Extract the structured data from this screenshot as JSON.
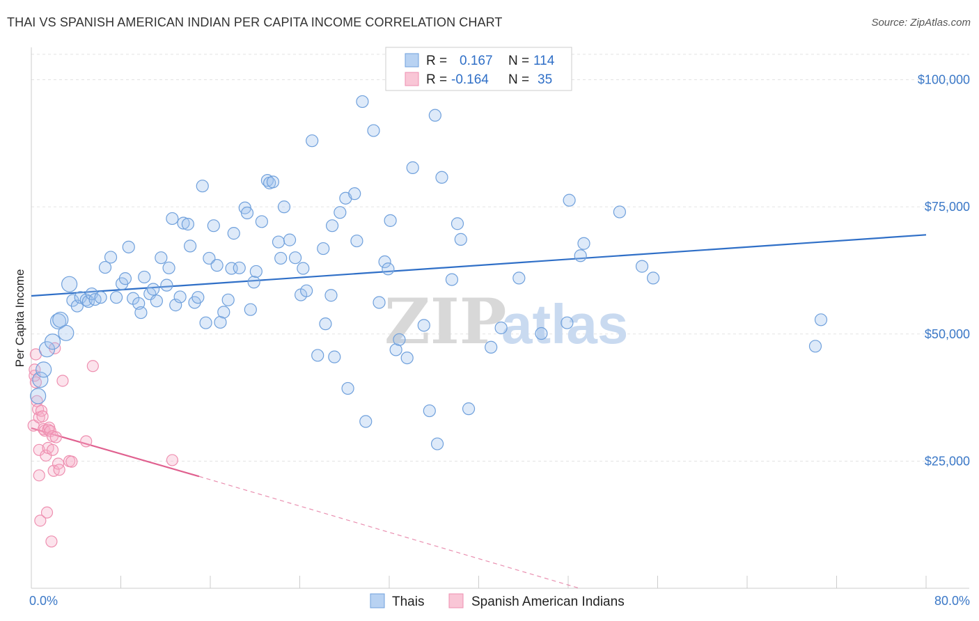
{
  "title": "THAI VS SPANISH AMERICAN INDIAN PER CAPITA INCOME CORRELATION CHART",
  "source": "Source: ZipAtlas.com",
  "watermark": {
    "zip": "ZIP",
    "atlas": "atlas"
  },
  "colors": {
    "thais": "#6fa0dc",
    "thais_line": "#2f6fc7",
    "spanish": "#ee8fb0",
    "spanish_line": "#e0608f",
    "tick": "#3b78c7"
  },
  "legend": {
    "rows": [
      {
        "r_label": "R =",
        "r_value": "0.167",
        "n_label": "N =",
        "n_value": "114"
      },
      {
        "r_label": "R =",
        "r_value": "-0.164",
        "n_label": "N =",
        "n_value": "35"
      }
    ]
  },
  "bottom_legend": [
    "Thais",
    "Spanish American Indians"
  ],
  "chart_data": {
    "type": "scatter",
    "title": "THAI VS SPANISH AMERICAN INDIAN PER CAPITA INCOME CORRELATION CHART",
    "ylabel": "Per Capita Income",
    "xlabel": "",
    "xlim": [
      0,
      80
    ],
    "ylim": [
      0,
      105000
    ],
    "x_tick_labels": [
      "0.0%",
      "80.0%"
    ],
    "y_ticks": [
      {
        "value": 25000,
        "label": "$25,000"
      },
      {
        "value": 50000,
        "label": "$50,000"
      },
      {
        "value": 75000,
        "label": "$75,000"
      },
      {
        "value": 100000,
        "label": "$100,000"
      }
    ],
    "grid": true,
    "legend_position": "top-center",
    "series": [
      {
        "name": "Thais",
        "r": 0.167,
        "n": 114,
        "trend": {
          "x": [
            0,
            80
          ],
          "y": [
            57500,
            69500
          ]
        },
        "points": [
          [
            0.6,
            37800
          ],
          [
            0.8,
            41000
          ],
          [
            1.1,
            43000
          ],
          [
            1.4,
            47000
          ],
          [
            1.9,
            48500
          ],
          [
            2.4,
            52500
          ],
          [
            2.6,
            52800
          ],
          [
            3.1,
            50200
          ],
          [
            3.4,
            59800
          ],
          [
            3.7,
            56600
          ],
          [
            4.1,
            55500
          ],
          [
            4.4,
            57200
          ],
          [
            4.9,
            56700
          ],
          [
            5.1,
            56400
          ],
          [
            5.4,
            57900
          ],
          [
            5.7,
            56800
          ],
          [
            6.2,
            57200
          ],
          [
            6.6,
            63100
          ],
          [
            7.1,
            65100
          ],
          [
            7.6,
            57200
          ],
          [
            8.1,
            59900
          ],
          [
            8.4,
            60900
          ],
          [
            8.7,
            67100
          ],
          [
            9.1,
            57000
          ],
          [
            9.6,
            56000
          ],
          [
            9.8,
            54200
          ],
          [
            10.1,
            61200
          ],
          [
            10.6,
            57900
          ],
          [
            10.9,
            58800
          ],
          [
            11.2,
            56500
          ],
          [
            11.6,
            65000
          ],
          [
            12.1,
            59600
          ],
          [
            12.3,
            63000
          ],
          [
            12.6,
            72700
          ],
          [
            12.9,
            55700
          ],
          [
            13.3,
            57300
          ],
          [
            13.6,
            71800
          ],
          [
            14.0,
            71600
          ],
          [
            14.2,
            67300
          ],
          [
            14.6,
            56200
          ],
          [
            14.9,
            57200
          ],
          [
            15.3,
            79100
          ],
          [
            15.6,
            52200
          ],
          [
            15.9,
            64900
          ],
          [
            16.3,
            71300
          ],
          [
            16.6,
            63500
          ],
          [
            16.9,
            52300
          ],
          [
            17.2,
            54300
          ],
          [
            17.6,
            56700
          ],
          [
            17.9,
            62900
          ],
          [
            18.1,
            69800
          ],
          [
            18.6,
            63000
          ],
          [
            19.1,
            74800
          ],
          [
            19.3,
            73800
          ],
          [
            19.6,
            54800
          ],
          [
            19.9,
            60200
          ],
          [
            20.1,
            62300
          ],
          [
            20.6,
            72100
          ],
          [
            21.1,
            80200
          ],
          [
            21.3,
            79700
          ],
          [
            21.6,
            79900
          ],
          [
            22.1,
            68100
          ],
          [
            22.3,
            64900
          ],
          [
            22.6,
            75000
          ],
          [
            23.1,
            68500
          ],
          [
            23.6,
            65000
          ],
          [
            24.1,
            57700
          ],
          [
            24.3,
            62900
          ],
          [
            24.6,
            58500
          ],
          [
            25.1,
            88000
          ],
          [
            25.6,
            45800
          ],
          [
            26.1,
            66800
          ],
          [
            26.3,
            52000
          ],
          [
            26.9,
            71300
          ],
          [
            27.1,
            45500
          ],
          [
            27.6,
            73900
          ],
          [
            28.1,
            76700
          ],
          [
            28.3,
            39300
          ],
          [
            28.9,
            77600
          ],
          [
            29.1,
            68300
          ],
          [
            29.6,
            95700
          ],
          [
            29.9,
            32800
          ],
          [
            30.6,
            90000
          ],
          [
            31.1,
            56200
          ],
          [
            31.6,
            64200
          ],
          [
            31.9,
            62800
          ],
          [
            32.1,
            72300
          ],
          [
            32.6,
            46900
          ],
          [
            32.9,
            48900
          ],
          [
            33.6,
            45300
          ],
          [
            34.1,
            82700
          ],
          [
            35.1,
            51700
          ],
          [
            35.6,
            34900
          ],
          [
            36.1,
            93000
          ],
          [
            36.3,
            28400
          ],
          [
            36.7,
            80800
          ],
          [
            37.6,
            60700
          ],
          [
            38.1,
            71700
          ],
          [
            38.4,
            68600
          ],
          [
            39.1,
            35300
          ],
          [
            41.1,
            47400
          ],
          [
            43.6,
            61000
          ],
          [
            45.6,
            50100
          ],
          [
            47.9,
            52200
          ],
          [
            48.1,
            76300
          ],
          [
            49.1,
            65400
          ],
          [
            49.4,
            67800
          ],
          [
            52.6,
            74000
          ],
          [
            54.6,
            63300
          ],
          [
            55.6,
            61000
          ],
          [
            70.6,
            52800
          ],
          [
            70.1,
            47600
          ],
          [
            42.0,
            51200
          ],
          [
            26.8,
            57600
          ]
        ]
      },
      {
        "name": "Spanish American Indians",
        "r": -0.164,
        "n": 35,
        "trend": {
          "x": [
            0,
            15
          ],
          "y": [
            31500,
            22000
          ]
        },
        "trend_dashed": {
          "x": [
            15,
            49
          ],
          "y": [
            22000,
            0
          ]
        },
        "points": [
          [
            0.2,
            32000
          ],
          [
            0.3,
            41800
          ],
          [
            0.3,
            43000
          ],
          [
            0.4,
            46000
          ],
          [
            0.5,
            36800
          ],
          [
            0.6,
            35200
          ],
          [
            0.7,
            33600
          ],
          [
            0.7,
            27200
          ],
          [
            0.7,
            22200
          ],
          [
            0.8,
            13300
          ],
          [
            0.9,
            34900
          ],
          [
            1.0,
            33800
          ],
          [
            1.1,
            31300
          ],
          [
            1.2,
            31000
          ],
          [
            1.3,
            26100
          ],
          [
            1.4,
            14900
          ],
          [
            1.5,
            27600
          ],
          [
            1.5,
            31200
          ],
          [
            1.6,
            31600
          ],
          [
            1.7,
            30900
          ],
          [
            1.8,
            9200
          ],
          [
            1.9,
            27200
          ],
          [
            1.9,
            29900
          ],
          [
            2.0,
            23100
          ],
          [
            2.1,
            47200
          ],
          [
            2.2,
            29700
          ],
          [
            2.4,
            24500
          ],
          [
            2.5,
            23300
          ],
          [
            2.8,
            40800
          ],
          [
            3.4,
            25000
          ],
          [
            3.6,
            24900
          ],
          [
            4.9,
            28900
          ],
          [
            5.5,
            43700
          ],
          [
            12.6,
            25200
          ],
          [
            0.4,
            40500
          ]
        ]
      }
    ]
  }
}
